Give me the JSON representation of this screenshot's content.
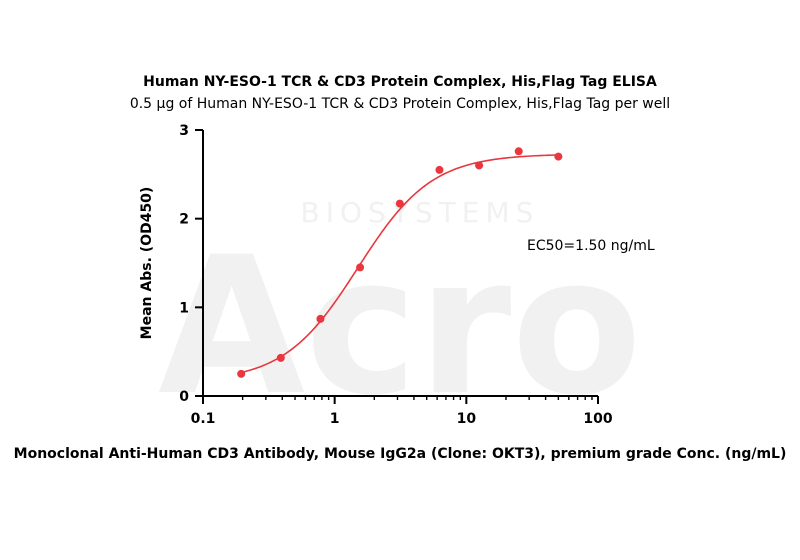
{
  "chart_data": {
    "type": "scatter",
    "title": "Human NY-ESO-1 TCR & CD3 Protein Complex, His,Flag Tag ELISA",
    "subtitle": "0.5 μg of Human NY-ESO-1 TCR & CD3 Protein Complex, His,Flag Tag per well",
    "xlabel": "Monoclonal Anti-Human CD3 Antibody, Mouse IgG2a (Clone: OKT3), premium grade Conc. (ng/mL)",
    "ylabel": "Mean Abs. (OD450)",
    "x_scale": "log",
    "xlim": [
      0.1,
      100
    ],
    "ylim": [
      0,
      3
    ],
    "x_ticks": [
      0.1,
      1,
      10,
      100
    ],
    "x_tick_labels": [
      "0.1",
      "1",
      "10",
      "100"
    ],
    "y_ticks": [
      0,
      1,
      2,
      3
    ],
    "y_tick_labels": [
      "0",
      "1",
      "2",
      "3"
    ],
    "grid": false,
    "series": [
      {
        "x": [
          0.195,
          0.39,
          0.78,
          1.56,
          3.125,
          6.25,
          12.5,
          25,
          50
        ],
        "y": [
          0.25,
          0.43,
          0.87,
          1.45,
          2.17,
          2.55,
          2.6,
          2.76,
          2.7
        ],
        "color": "#e8373f"
      }
    ],
    "fit": {
      "model": "4PL",
      "bottom": 0.16,
      "top": 2.73,
      "ec50": 1.5,
      "hill": 1.55,
      "color": "#e8373f"
    },
    "annotation": "EC50=1.50 ng/mL",
    "watermark": {
      "logo_text": "Acro",
      "text": "BIOSYSTEMS"
    }
  }
}
